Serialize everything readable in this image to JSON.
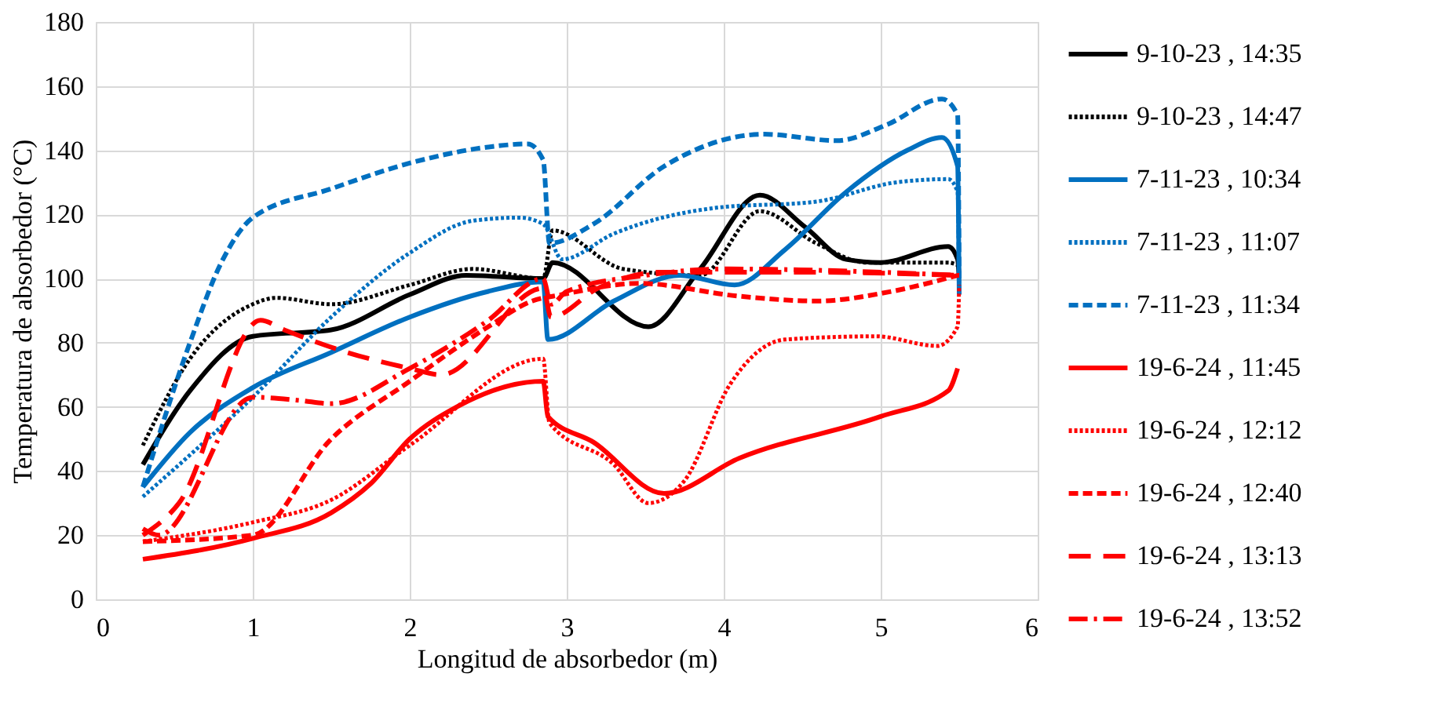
{
  "chart_data": {
    "type": "line",
    "xlabel": "Longitud de absorbedor (m)",
    "ylabel": "Temperatura de absorbedor (°C)",
    "xlim": [
      0,
      6
    ],
    "ylim": [
      0,
      180
    ],
    "xticks": [
      0,
      1,
      2,
      3,
      4,
      5,
      6
    ],
    "yticks": [
      0,
      20,
      40,
      60,
      80,
      100,
      120,
      140,
      160,
      180
    ],
    "grid": true,
    "legend": "right",
    "marker": "none",
    "series": [
      {
        "name": "9-10-23 , 14:35",
        "color": "#000000",
        "line_style": "solid",
        "x": [
          0.3,
          0.6,
          1.0,
          1.5,
          2.0,
          2.36,
          2.85,
          2.91,
          3.52,
          3.85,
          4.23,
          4.52,
          4.78,
          5.0,
          5.43,
          5.49,
          5.5
        ],
        "values": [
          42,
          65,
          82,
          84,
          95,
          101,
          100,
          105,
          85,
          103,
          126,
          116,
          106,
          105,
          110,
          106,
          100
        ]
      },
      {
        "name": "9-10-23 , 14:47",
        "color": "#000000",
        "line_style": "dotted",
        "x": [
          0.3,
          0.6,
          1.0,
          1.15,
          1.5,
          2.0,
          2.4,
          2.85,
          2.91,
          3.36,
          3.85,
          4.23,
          4.59,
          4.91,
          5.43,
          5.5
        ],
        "values": [
          48,
          75,
          92,
          94,
          92,
          98,
          103,
          100,
          115,
          103,
          101,
          121,
          111,
          105,
          105,
          104
        ]
      },
      {
        "name": "7-11-23 , 10:34",
        "color": "#0070c0",
        "line_style": "solid",
        "x": [
          0.3,
          0.6,
          1.0,
          1.5,
          2.0,
          2.5,
          2.85,
          2.88,
          3.3,
          3.72,
          4.07,
          4.39,
          4.78,
          5.17,
          5.39,
          5.49,
          5.5
        ],
        "values": [
          35,
          52,
          66,
          77,
          88,
          96,
          99,
          81,
          93,
          101,
          98,
          109,
          127,
          140,
          144,
          135,
          95
        ]
      },
      {
        "name": "7-11-23 , 11:07",
        "color": "#0070c0",
        "line_style": "dotted",
        "x": [
          0.3,
          0.6,
          1.0,
          1.5,
          2.0,
          2.4,
          2.7,
          2.85,
          2.97,
          3.3,
          3.94,
          4.59,
          5.1,
          5.43,
          5.49,
          5.5
        ],
        "values": [
          32,
          45,
          63,
          88,
          108,
          118,
          119,
          117,
          106,
          114,
          122,
          124,
          130,
          131,
          127,
          97
        ]
      },
      {
        "name": "7-11-23 , 11:34",
        "color": "#0070c0",
        "line_style": "dashed",
        "x": [
          0.3,
          0.6,
          0.8,
          1.0,
          1.5,
          2.0,
          2.5,
          2.75,
          2.85,
          2.89,
          3.17,
          3.62,
          4.26,
          4.72,
          5.04,
          5.39,
          5.49,
          5.5
        ],
        "values": [
          35,
          80,
          105,
          119,
          128,
          136,
          141,
          142,
          137,
          111,
          117,
          135,
          145,
          143,
          148,
          156,
          151,
          100
        ]
      },
      {
        "name": "19-6-24 , 11:45",
        "color": "#ff0000",
        "line_style": "solid",
        "x": [
          0.3,
          1.0,
          1.5,
          1.75,
          2.0,
          2.3,
          2.85,
          2.88,
          3.17,
          3.62,
          4.1,
          5.0,
          5.43,
          5.49
        ],
        "values": [
          12.5,
          19,
          27,
          36,
          50,
          60,
          68,
          57,
          49,
          33,
          44,
          57,
          65,
          72
        ]
      },
      {
        "name": "19-6-24 , 12:12",
        "color": "#ff0000",
        "line_style": "dotted",
        "x": [
          0.3,
          1.0,
          1.5,
          2.0,
          2.85,
          2.89,
          3.3,
          3.52,
          3.75,
          4.04,
          4.39,
          4.97,
          5.36,
          5.49,
          5.5
        ],
        "values": [
          18,
          24,
          31,
          48,
          75,
          55,
          42,
          30,
          37,
          67,
          81,
          82,
          79,
          85,
          98
        ]
      },
      {
        "name": "19-6-24 , 12:40",
        "color": "#ff0000",
        "line_style": "dashed",
        "x": [
          0.3,
          1.0,
          1.5,
          2.0,
          2.5,
          2.78,
          2.97,
          3.46,
          4.1,
          4.59,
          5.07,
          5.49
        ],
        "values": [
          18,
          20,
          50,
          68,
          85,
          93,
          95,
          98.5,
          94.5,
          93,
          96,
          101
        ]
      },
      {
        "name": "19-6-24 , 13:13",
        "color": "#ff0000",
        "line_style": "longdash",
        "x": [
          0.3,
          0.53,
          1.05,
          1.2,
          1.6,
          2.0,
          2.2,
          2.85,
          2.9,
          3.2,
          3.6,
          4.5,
          5.5
        ],
        "values": [
          20,
          30,
          87,
          84,
          77,
          72,
          70,
          97,
          88,
          97,
          102,
          102,
          101
        ]
      },
      {
        "name": "19-6-24 , 13:52",
        "color": "#ff0000",
        "line_style": "dashdot",
        "x": [
          0.3,
          0.4,
          1.0,
          1.3,
          1.5,
          2.0,
          2.5,
          2.85,
          2.9,
          3.0,
          3.5,
          4.0,
          5.0,
          5.5
        ],
        "values": [
          22,
          20,
          63,
          62,
          61,
          72,
          87,
          100,
          92,
          96,
          101,
          103,
          102,
          101
        ]
      }
    ]
  }
}
